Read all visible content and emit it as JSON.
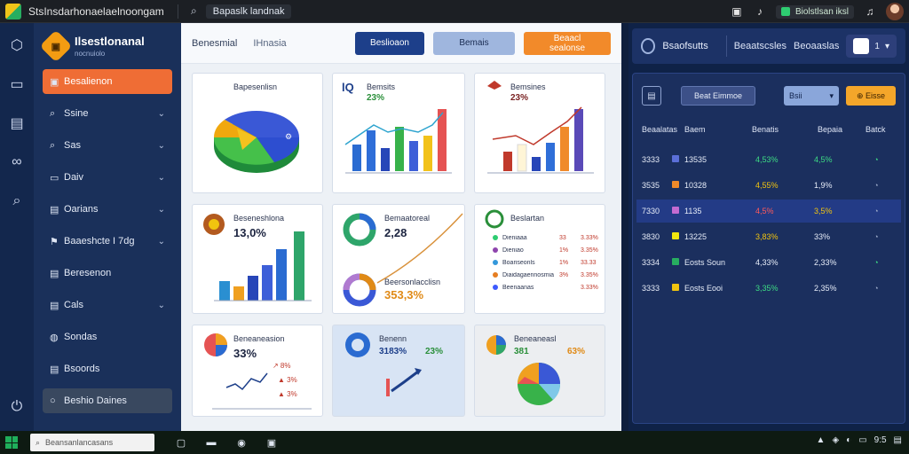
{
  "titlebar": {
    "title": "StsInsdarhonaelaelnoongam",
    "search_icon": "search-icon",
    "tab_label": "Bapaslk landnak",
    "pill_label": "Biolstlsan iksl",
    "colors": {
      "pill_dot": "#2ecc71"
    }
  },
  "rail": {
    "icons": [
      "hexagon-icon",
      "book-icon",
      "chart-icon",
      "link-icon",
      "search-icon",
      "power-icon"
    ]
  },
  "brand": {
    "name": "Ilsestlonanal",
    "sub": "nocnuiolo"
  },
  "sidebar": {
    "items": [
      {
        "label": "Besalienon",
        "icon": "folder-icon"
      },
      {
        "label": "Ssine",
        "icon": "search-icon"
      },
      {
        "label": "Sas",
        "icon": "search-icon"
      },
      {
        "label": "Daiv",
        "icon": "monitor-icon"
      },
      {
        "label": "Oarians",
        "icon": "doc-icon"
      },
      {
        "label": "Baaeshcte I 7dg",
        "icon": "flag-icon"
      },
      {
        "label": "Beresenon",
        "icon": "doc-icon"
      },
      {
        "label": "Cals",
        "icon": "doc-icon"
      },
      {
        "label": "Sondas",
        "icon": "globe-icon"
      },
      {
        "label": "Bsoords",
        "icon": "doc-icon"
      },
      {
        "label": "Beshio Daines",
        "icon": "circle-icon"
      }
    ]
  },
  "main": {
    "breadcrumb": "Benesmial",
    "breadcrumb2": "IHnasia",
    "btn_primary": "Beslioaon",
    "btn_secondary": "Bemais",
    "btn_accent": "Beaacl sealonse"
  },
  "cards": {
    "c1": {
      "title": "Bapesenlisn"
    },
    "c2": {
      "title": "Bemsits",
      "value": "23%"
    },
    "c3": {
      "title": "Bemsines",
      "value": "23%"
    },
    "c4": {
      "title": "Beseneshlona",
      "value": "13,0%"
    },
    "c5": {
      "title": "Bemaatoreal",
      "value": "2,28",
      "title2": "Beersonlacclisn",
      "value2": "353,3%"
    },
    "c6": {
      "title": "Beslartan"
    },
    "c7": {
      "title": "Beneaneasion",
      "value": "33%"
    },
    "c8": {
      "title": "Benenn",
      "value": "3183%",
      "value2": "23%"
    },
    "c9": {
      "title": "Beneaneasl",
      "value": "381",
      "value2": "63%"
    }
  },
  "legend6": [
    {
      "label": "Dieniaaa",
      "v1": "33",
      "v2": "3.33%",
      "color": "#2ecc71"
    },
    {
      "label": "Dieniao",
      "v1": "1%",
      "v2": "3.35%",
      "color": "#8e44ad"
    },
    {
      "label": "Boariseonls",
      "v1": "1%",
      "v2": "33.33",
      "color": "#3498db"
    },
    {
      "label": "Diaidagaennosmia",
      "v1": "3%",
      "v2": "3.35%",
      "color": "#e67e22"
    },
    {
      "label": "Beenaanas",
      "v1": "",
      "v2": "3.33%",
      "color": "#3d5afe"
    }
  ],
  "right": {
    "header_title": "Bsaofsutts",
    "header_tab": "Beaatscsles",
    "header_tab2": "Beoaaslas",
    "user_count": "1",
    "tool_filter": "Beat Eimmoe",
    "tool_select": "Bsii",
    "tool_action": "Eisse",
    "columns": [
      "Beaalatas",
      "Baem",
      "Benatis",
      "Bepaia",
      "Batck"
    ],
    "rows": [
      {
        "id": "3333",
        "name": "13535",
        "a": "4,53%",
        "b": "4,5%",
        "swatch": "#5b6fd8",
        "a_color": "#3ddc84",
        "b_color": "#3ddc84",
        "c_color": "#3ddc84"
      },
      {
        "id": "3535",
        "name": "10328",
        "a": "4,55%",
        "b": "1,9%",
        "swatch": "#f08a2a",
        "a_color": "#f1c40f",
        "b_color": "#e6ecf8",
        "c_color": "#9aa8c8"
      },
      {
        "id": "7330",
        "name": "1135",
        "a": "4,5%",
        "b": "3,5%",
        "swatch": "#c36bd1",
        "a_color": "#ff5a5a",
        "b_color": "#f1c40f",
        "c_color": "#9aa8c8"
      },
      {
        "id": "3830",
        "name": "13225",
        "a": "3,83%",
        "b": "33%",
        "swatch": "#f1e60f",
        "a_color": "#f1c40f",
        "b_color": "#e6ecf8",
        "c_color": "#9aa8c8"
      },
      {
        "id": "3334",
        "name": "Eosts Soun",
        "a": "4,33%",
        "b": "2,33%",
        "swatch": "#27ae60",
        "a_color": "#e6ecf8",
        "b_color": "#e6ecf8",
        "c_color": "#3ddc84"
      },
      {
        "id": "3333",
        "name": "Eosts Eooi",
        "a": "3,35%",
        "b": "2,35%",
        "swatch": "#f1c40f",
        "a_color": "#3ddc84",
        "b_color": "#e6ecf8",
        "c_color": "#9aa8c8"
      }
    ]
  },
  "taskbar": {
    "search_placeholder": "Beansanlancasans",
    "tray_time": "9:5"
  }
}
